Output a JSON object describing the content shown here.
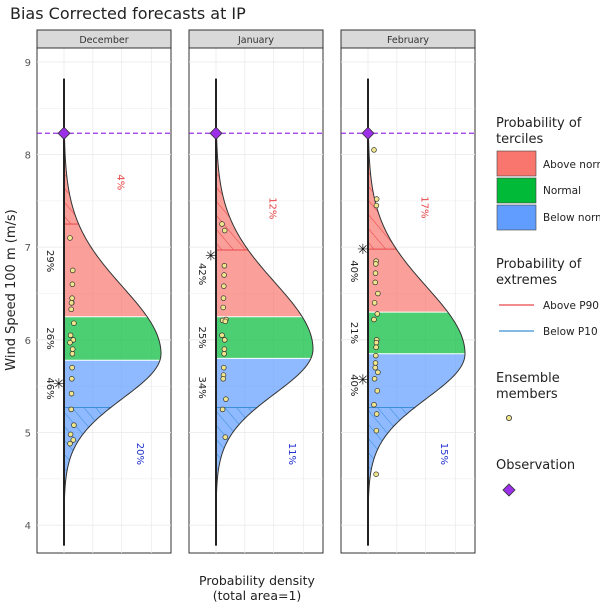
{
  "chart_data": {
    "type": "area",
    "title": "Bias Corrected forecasts at IP",
    "ylabel": "Wind Speed 100 m (m/s)",
    "xlabel_line1": "Probability density",
    "xlabel_line2": "(total area=1)",
    "ylim": [
      3.7,
      9.15
    ],
    "y_ticks": [
      "4",
      "5",
      "6",
      "7",
      "8",
      "9"
    ],
    "observation_value": 8.23,
    "tercile_colors": {
      "above": "#F8766D",
      "normal": "#00BA38",
      "below": "#619CFF"
    },
    "extreme_colors": {
      "above": "#e8474a",
      "below": "#3a8fd8"
    },
    "observation_color": "#9b30e8",
    "panels": [
      {
        "name": "December",
        "density_range": [
          3.78,
          8.82
        ],
        "mode": 5.85,
        "tercile_bounds": [
          5.78,
          6.25
        ],
        "extreme_bounds": [
          5.27,
          7.25
        ],
        "whisker": [
          3.78,
          8.82
        ],
        "obs_mark": 5.53,
        "tercile_pcts": {
          "above": "29%",
          "normal": "26%",
          "below": "46%"
        },
        "extreme_pcts": {
          "above": "4%",
          "below": "20%"
        },
        "members": [
          7.1,
          6.75,
          6.6,
          6.45,
          6.4,
          6.4,
          6.33,
          6.18,
          6.05,
          6.0,
          5.97,
          5.9,
          5.85,
          5.7,
          5.58,
          5.42,
          5.25,
          5.08,
          4.98,
          4.92,
          4.88
        ]
      },
      {
        "name": "January",
        "density_range": [
          3.78,
          8.82
        ],
        "mode": 5.9,
        "tercile_bounds": [
          5.8,
          6.25
        ],
        "extreme_bounds": [
          5.27,
          6.97
        ],
        "whisker": [
          3.78,
          8.82
        ],
        "obs_mark": 6.91,
        "tercile_pcts": {
          "above": "42%",
          "normal": "25%",
          "below": "34%"
        },
        "extreme_pcts": {
          "above": "12%",
          "below": "11%"
        },
        "members": [
          7.25,
          7.18,
          6.8,
          6.7,
          6.58,
          6.45,
          6.35,
          6.22,
          6.21,
          6.2,
          6.05,
          6.0,
          5.9,
          5.85,
          5.7,
          5.62,
          5.58,
          5.36,
          5.25,
          4.95
        ]
      },
      {
        "name": "February",
        "density_range": [
          3.78,
          8.82
        ],
        "mode": 5.85,
        "tercile_bounds": [
          5.85,
          6.3
        ],
        "extreme_bounds": [
          5.27,
          6.98
        ],
        "whisker": [
          3.78,
          8.82
        ],
        "obs_mark": 6.98,
        "obs_mark2": 5.57,
        "tercile_pcts": {
          "above": "40%",
          "normal": "21%",
          "below": "40%"
        },
        "extreme_pcts": {
          "above": "17%",
          "below": "15%"
        },
        "members": [
          8.05,
          7.52,
          7.45,
          6.85,
          6.82,
          6.72,
          6.62,
          6.5,
          6.4,
          6.28,
          6.22,
          6.0,
          5.97,
          5.92,
          5.83,
          5.75,
          5.7,
          5.65,
          5.58,
          5.45,
          5.3,
          5.2,
          5.02,
          4.55
        ]
      }
    ],
    "legend": {
      "terciles_title_line1": "Probability of",
      "terciles_title_line2": "terciles",
      "terciles_items": [
        "Above normal",
        "Normal",
        "Below normal"
      ],
      "extremes_title_line1": "Probability of",
      "extremes_title_line2": "extremes",
      "extremes_items": [
        "Above P90",
        "Below P10"
      ],
      "members_title_line1": "Ensemble",
      "members_title_line2": "members",
      "observation_title": "Observation",
      "placement": "right"
    }
  }
}
